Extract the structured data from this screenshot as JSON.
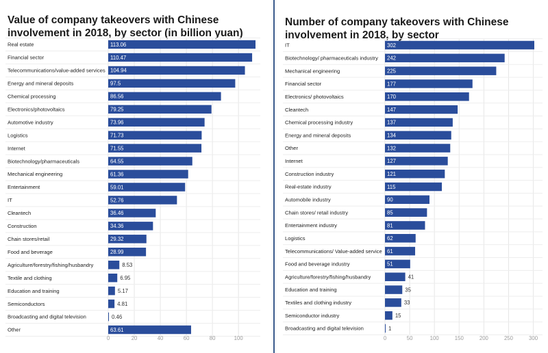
{
  "chart_data": [
    {
      "type": "bar",
      "orientation": "horizontal",
      "title": "Value of company takeovers with Chinese involvement in 2018, by sector (in billion yuan)",
      "categories": [
        "Real estate",
        "Financial sector",
        "Telecommunications/value-added services",
        "Energy and mineral deposits",
        "Chemical processing",
        "Electronics/photovoltaics",
        "Automotive industry",
        "Logistics",
        "Internet",
        "Biotechnology/pharmaceuticals",
        "Mechanical engineering",
        "Entertainment",
        "IT",
        "Cleantech",
        "Construction",
        "Chain stores/retail",
        "Food and beverage",
        "Agriculture/forestry/fishing/husbandry",
        "Textile and clothing",
        "Education and training",
        "Semiconductors",
        "Broadcasting and digital television",
        "Other"
      ],
      "values": [
        113.06,
        110.47,
        104.94,
        97.5,
        86.56,
        79.25,
        73.96,
        71.73,
        71.55,
        64.55,
        61.36,
        59.01,
        52.76,
        36.46,
        34.36,
        29.32,
        28.99,
        8.53,
        6.95,
        5.17,
        4.81,
        0.46,
        63.61
      ],
      "value_labels": [
        "113.06",
        "110.47",
        "104.94",
        "97.5",
        "86.56",
        "79.25",
        "73.96",
        "71.73",
        "71.55",
        "64.55",
        "61.36",
        "59.01",
        "52.76",
        "36.46",
        "34.36",
        "29.32",
        "28.99",
        "8.53",
        "6.95",
        "5.17",
        "4.81",
        "0.46",
        "63.61"
      ],
      "xticks": [
        0,
        20,
        40,
        60,
        80,
        100
      ],
      "xlim": [
        0,
        113.06
      ],
      "grid": true,
      "bar_color": "#2a4d9b"
    },
    {
      "type": "bar",
      "orientation": "horizontal",
      "title": "Number of company takeovers with Chinese involvement in 2018, by sector",
      "categories": [
        "IT",
        "Biotechnology/ pharmaceuticals industry",
        "Mechanical engineering",
        "Financial sector",
        "Electronics/ photovoltaics",
        "Cleantech",
        "Chemical processing industry",
        "Energy and mineral deposits",
        "Other",
        "Internet",
        "Construction industry",
        "Real-estate industry",
        "Automobile industry",
        "Chain stores/ retail industry",
        "Entertainment industry",
        "Logistics",
        "Telecommunications/ Value-added service",
        "Food and beverage industry",
        "Agriculture/forestry/fishing/husbandry",
        "Education and training",
        "Textiles and clothing industry",
        "Semiconductor industry",
        "Broadcasting and digital television"
      ],
      "values": [
        302,
        242,
        225,
        177,
        170,
        147,
        137,
        134,
        132,
        127,
        121,
        115,
        90,
        85,
        81,
        62,
        61,
        51,
        41,
        35,
        33,
        15,
        1
      ],
      "value_labels": [
        "302",
        "242",
        "225",
        "177",
        "170",
        "147",
        "137",
        "134",
        "132",
        "127",
        "121",
        "115",
        "90",
        "85",
        "81",
        "62",
        "61",
        "51",
        "41",
        "35",
        "33",
        "15",
        "1"
      ],
      "xticks": [
        0,
        50,
        100,
        150,
        200,
        250,
        300
      ],
      "xlim": [
        0,
        302
      ],
      "grid": true,
      "bar_color": "#2a4d9b"
    }
  ]
}
